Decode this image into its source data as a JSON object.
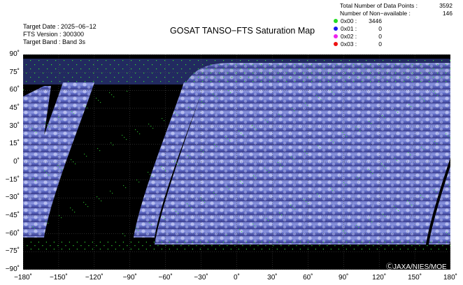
{
  "header": {
    "target_date": "Target Date : 2025−06−12",
    "fts_version": "FTS Version : 300300",
    "target_band": "Target Band : Band 3s",
    "title": "GOSAT TANSO−FTS Saturation Map"
  },
  "stats": {
    "total_label": "Total Number of Data Points :",
    "total_value": "3592",
    "nonavail_label": "Number of Non−available :",
    "nonavail_value": "146"
  },
  "legend": [
    {
      "label": "0x00 :",
      "value": "3446",
      "color": "#22dd22"
    },
    {
      "label": "0x01 :",
      "value": "0",
      "color": "#1a1aee"
    },
    {
      "label": "0x02 :",
      "value": "0",
      "color": "#ee22ee"
    },
    {
      "label": "0x03 :",
      "value": "0",
      "color": "#ee1111"
    }
  ],
  "axes": {
    "y_ticks": [
      "90˚",
      "75˚",
      "60˚",
      "45˚",
      "30˚",
      "15˚",
      "0˚",
      "−15˚",
      "−30˚",
      "−45˚",
      "−60˚",
      "−75˚",
      "−90˚"
    ],
    "x_ticks": [
      "−180˚",
      "−150˚",
      "−120˚",
      "−90˚",
      "−60˚",
      "−30˚",
      "0˚",
      "30˚",
      "60˚",
      "90˚",
      "120˚",
      "150˚",
      "180˚"
    ]
  },
  "copyright": "ⒸJAXA/NIES/MOE"
}
